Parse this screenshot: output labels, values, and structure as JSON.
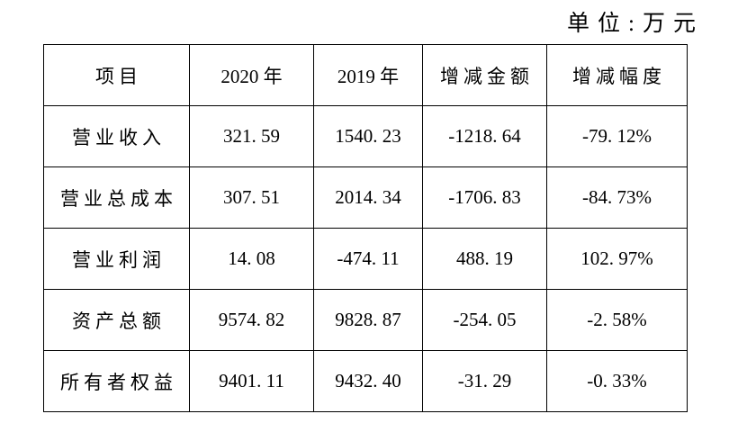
{
  "page": {
    "unit_label": "单位:万元"
  },
  "colors": {
    "background": "#ffffff",
    "text": "#000000",
    "border": "#000000"
  },
  "table": {
    "headers": {
      "item": "项目",
      "y2020": "2020 年",
      "y2019": "2019 年",
      "change_amount": "增减金额",
      "change_rate": "增减幅度"
    },
    "rows": [
      {
        "label": "营业收入",
        "y2020": "321.59",
        "y2019": "1540.23",
        "change_amount": "-1218.64",
        "change_rate": "-79.12%"
      },
      {
        "label": "营业总成本",
        "y2020": "307.51",
        "y2019": "2014.34",
        "change_amount": "-1706.83",
        "change_rate": "-84.73%"
      },
      {
        "label": "营业利润",
        "y2020": "14.08",
        "y2019": "-474.11",
        "change_amount": "488.19",
        "change_rate": "102.97%"
      },
      {
        "label": "资产总额",
        "y2020": "9574.82",
        "y2019": "9828.87",
        "change_amount": "-254.05",
        "change_rate": "-2.58%"
      },
      {
        "label": "所有者权益",
        "y2020": "9401.11",
        "y2019": "9432.40",
        "change_amount": "-31.29",
        "change_rate": "-0.33%"
      }
    ]
  }
}
